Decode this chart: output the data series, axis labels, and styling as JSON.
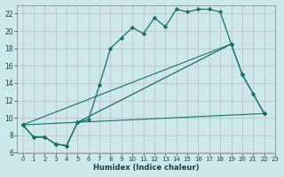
{
  "xlabel": "Humidex (Indice chaleur)",
  "background_color": "#cde8e8",
  "grid_color": "#c8b8c8",
  "line_color": "#1a7060",
  "xlim": [
    -0.5,
    23
  ],
  "ylim": [
    6,
    23
  ],
  "yticks": [
    6,
    8,
    10,
    12,
    14,
    16,
    18,
    20,
    22
  ],
  "xticks": [
    0,
    1,
    2,
    3,
    4,
    5,
    6,
    7,
    8,
    9,
    10,
    11,
    12,
    13,
    14,
    15,
    16,
    17,
    18,
    19,
    20,
    21,
    22,
    23
  ],
  "curve1_x": [
    0,
    1,
    2,
    3,
    4,
    5,
    6,
    7,
    8,
    9,
    10,
    11,
    12,
    13,
    14,
    15,
    16,
    17,
    18,
    19
  ],
  "curve1_y": [
    9.2,
    7.8,
    7.8,
    7.0,
    6.8,
    9.5,
    9.8,
    13.8,
    18.0,
    19.2,
    20.4,
    19.7,
    21.5,
    20.5,
    22.5,
    22.2,
    22.5,
    22.5,
    22.2,
    18.5
  ],
  "curve2_x": [
    0,
    1,
    2,
    3,
    4,
    5,
    19,
    20,
    21,
    22
  ],
  "curve2_y": [
    9.2,
    7.8,
    7.8,
    7.0,
    6.8,
    9.5,
    18.5,
    15.0,
    12.8,
    10.5
  ],
  "curve3_x": [
    0,
    19,
    20,
    22
  ],
  "curve3_y": [
    9.2,
    18.5,
    15.0,
    10.5
  ],
  "curve4_x": [
    0,
    22
  ],
  "curve4_y": [
    9.2,
    10.5
  ]
}
